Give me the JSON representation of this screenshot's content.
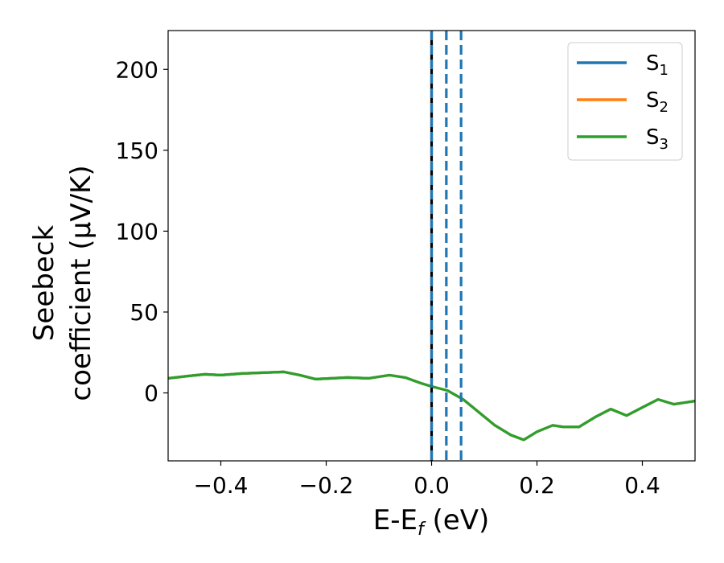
{
  "chart_data": {
    "type": "line",
    "xlabel": "E-E",
    "xlabel_sub": "f",
    "xlabel_unit": " (eV)",
    "ylabel_line1": "Seebeck",
    "ylabel_line2": "coefficient  (μV/K)",
    "xlim": [
      -0.5,
      0.5
    ],
    "ylim": [
      -42,
      224
    ],
    "xticks": [
      -0.4,
      -0.2,
      0.0,
      0.2,
      0.4
    ],
    "xtick_labels": [
      "−0.4",
      "−0.2",
      "0.0",
      "0.2",
      "0.4"
    ],
    "yticks": [
      0,
      50,
      100,
      150,
      200
    ],
    "ytick_labels": [
      "0",
      "50",
      "100",
      "150",
      "200"
    ],
    "grid": false,
    "legend_position": "top-right",
    "series": [
      {
        "name": "S",
        "sub": "1",
        "color": "#1f77b4",
        "x": [
          -0.5,
          -0.46,
          -0.43,
          -0.4,
          -0.36,
          -0.32,
          -0.28,
          -0.25,
          -0.22,
          -0.19,
          -0.16,
          -0.12,
          -0.08,
          -0.05,
          -0.02,
          0.0,
          0.03,
          0.06,
          0.09,
          0.12,
          0.15,
          0.175,
          0.2,
          0.23,
          0.25,
          0.28,
          0.31,
          0.34,
          0.37,
          0.4,
          0.43,
          0.46,
          0.5
        ],
        "y": [
          9,
          10.5,
          11.5,
          11,
          12,
          12.5,
          13,
          11,
          8.5,
          9,
          9.5,
          9,
          11,
          9.5,
          6,
          4,
          1.5,
          -4,
          -12,
          -20,
          -26,
          -29,
          -24,
          -20,
          -21,
          -21,
          -15,
          -10,
          -14,
          -9,
          -4,
          -7,
          -5
        ]
      },
      {
        "name": "S",
        "sub": "2",
        "color": "#ff7f0e",
        "x": [
          -0.5,
          -0.46,
          -0.43,
          -0.4,
          -0.36,
          -0.32,
          -0.28,
          -0.25,
          -0.22,
          -0.19,
          -0.16,
          -0.12,
          -0.08,
          -0.05,
          -0.02,
          0.0,
          0.03,
          0.06,
          0.09,
          0.12,
          0.15,
          0.175,
          0.2,
          0.23,
          0.25,
          0.28,
          0.31,
          0.34,
          0.37,
          0.4,
          0.43,
          0.46,
          0.5
        ],
        "y": [
          9,
          10.5,
          11.5,
          11,
          12,
          12.5,
          13,
          11,
          8.5,
          9,
          9.5,
          9,
          11,
          9.5,
          6,
          4,
          1.5,
          -4,
          -12,
          -20,
          -26,
          -29,
          -24,
          -20,
          -21,
          -21,
          -15,
          -10,
          -14,
          -9,
          -4,
          -7,
          -5
        ]
      },
      {
        "name": "S",
        "sub": "3",
        "color": "#2ca02c",
        "x": [
          -0.5,
          -0.46,
          -0.43,
          -0.4,
          -0.36,
          -0.32,
          -0.28,
          -0.25,
          -0.22,
          -0.19,
          -0.16,
          -0.12,
          -0.08,
          -0.05,
          -0.02,
          0.0,
          0.03,
          0.06,
          0.09,
          0.12,
          0.15,
          0.175,
          0.2,
          0.23,
          0.25,
          0.28,
          0.31,
          0.34,
          0.37,
          0.4,
          0.43,
          0.46,
          0.5
        ],
        "y": [
          9,
          10.5,
          11.5,
          11,
          12,
          12.5,
          13,
          11,
          8.5,
          9,
          9.5,
          9,
          11,
          9.5,
          6,
          4,
          1.5,
          -4,
          -12,
          -20,
          -26,
          -29,
          -24,
          -20,
          -21,
          -21,
          -15,
          -10,
          -14,
          -9,
          -4,
          -7,
          -5
        ]
      }
    ],
    "vlines": [
      {
        "x": 0.0,
        "color": "#000000",
        "style": "solid"
      },
      {
        "x": 0.0,
        "color": "#1f77b4",
        "style": "dashed"
      },
      {
        "x": 0.028,
        "color": "#1f77b4",
        "style": "dashed"
      },
      {
        "x": 0.056,
        "color": "#1f77b4",
        "style": "dashed"
      }
    ]
  }
}
